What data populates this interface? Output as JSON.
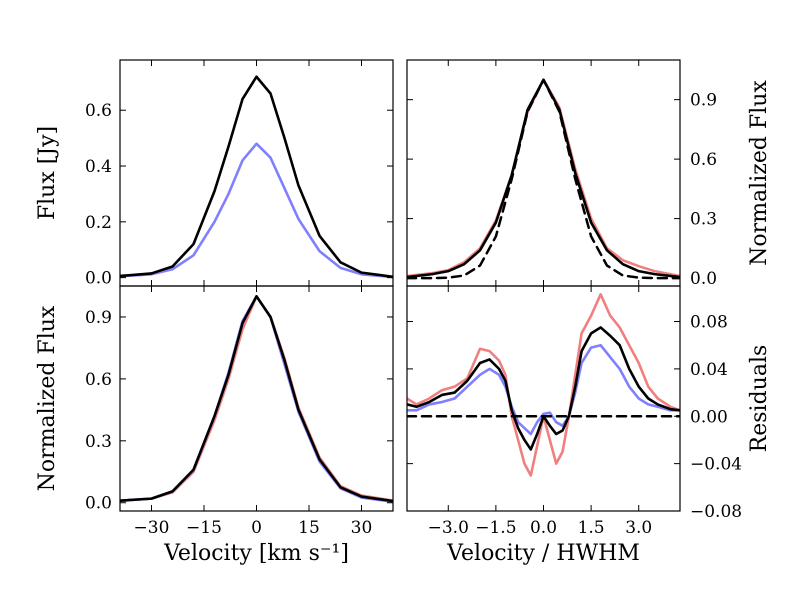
{
  "chart_data": [
    {
      "type": "line",
      "id": "top_left",
      "xlabel": "",
      "ylabel": "Flux [Jy]",
      "xlim": [
        -39,
        39
      ],
      "ylim": [
        -0.03,
        0.78
      ],
      "xticks": [
        -30,
        -15,
        0,
        15,
        30
      ],
      "xtick_labels": [],
      "yticks": [
        0.0,
        0.2,
        0.4,
        0.6
      ],
      "ytick_labels": [
        "0.0",
        "0.2",
        "0.4",
        "0.6"
      ],
      "ylabel_side": "left",
      "series": [
        {
          "name": "blue profile",
          "color": "#8080ff",
          "x": [
            -39,
            -30,
            -24,
            -18,
            -12,
            -8,
            -4,
            0,
            4,
            8,
            12,
            18,
            24,
            30,
            39
          ],
          "y": [
            0.005,
            0.012,
            0.03,
            0.08,
            0.2,
            0.3,
            0.42,
            0.48,
            0.43,
            0.32,
            0.21,
            0.095,
            0.035,
            0.012,
            0.002
          ]
        },
        {
          "name": "black profile",
          "color": "#000000",
          "x": [
            -39,
            -30,
            -24,
            -18,
            -12,
            -8,
            -4,
            0,
            4,
            8,
            12,
            18,
            24,
            30,
            39
          ],
          "y": [
            0.006,
            0.015,
            0.04,
            0.12,
            0.31,
            0.47,
            0.64,
            0.72,
            0.66,
            0.5,
            0.33,
            0.15,
            0.055,
            0.018,
            0.003
          ]
        }
      ]
    },
    {
      "type": "line",
      "id": "top_right",
      "xlabel": "",
      "ylabel": "Normalized Flux",
      "xlim": [
        -4.3,
        4.3
      ],
      "ylim": [
        -0.04,
        1.1
      ],
      "xticks": [
        -3.0,
        -1.5,
        0.0,
        1.5,
        3.0
      ],
      "xtick_labels": [],
      "yticks": [
        0.0,
        0.3,
        0.6,
        0.9
      ],
      "ytick_labels": [
        "0.0",
        "0.3",
        "0.6",
        "0.9"
      ],
      "ylabel_side": "right",
      "series": [
        {
          "name": "red profile",
          "color": "#f08080",
          "x": [
            -4.3,
            -3.5,
            -3.0,
            -2.5,
            -2.0,
            -1.5,
            -1.0,
            -0.5,
            0.0,
            0.5,
            1.0,
            1.5,
            2.0,
            2.5,
            3.0,
            3.5,
            4.3
          ],
          "y": [
            0.01,
            0.025,
            0.04,
            0.08,
            0.15,
            0.29,
            0.52,
            0.84,
            1.0,
            0.86,
            0.55,
            0.3,
            0.15,
            0.09,
            0.06,
            0.035,
            0.01
          ]
        },
        {
          "name": "black profile",
          "color": "#000000",
          "x": [
            -4.3,
            -3.5,
            -3.0,
            -2.5,
            -2.0,
            -1.5,
            -1.0,
            -0.5,
            0.0,
            0.5,
            1.0,
            1.5,
            2.0,
            2.5,
            3.0,
            3.5,
            4.3
          ],
          "y": [
            0.005,
            0.02,
            0.035,
            0.07,
            0.14,
            0.28,
            0.52,
            0.85,
            1.0,
            0.85,
            0.53,
            0.28,
            0.14,
            0.07,
            0.035,
            0.02,
            0.005
          ]
        },
        {
          "name": "gaussian",
          "color": "#000000",
          "dashed": true,
          "x": [
            -4.3,
            -3.5,
            -3.0,
            -2.5,
            -2.0,
            -1.5,
            -1.0,
            -0.5,
            0.0,
            0.5,
            1.0,
            1.5,
            2.0,
            2.5,
            3.0,
            3.5,
            4.3
          ],
          "y": [
            0.0,
            0.0,
            0.002,
            0.013,
            0.063,
            0.21,
            0.5,
            0.84,
            1.0,
            0.84,
            0.5,
            0.21,
            0.063,
            0.013,
            0.002,
            0.0,
            0.0
          ]
        }
      ]
    },
    {
      "type": "line",
      "id": "bottom_left",
      "xlabel": "Velocity [km s⁻¹]",
      "ylabel": "Normalized Flux",
      "xlim": [
        -39,
        39
      ],
      "ylim": [
        -0.04,
        1.05
      ],
      "xticks": [
        -30,
        -15,
        0,
        15,
        30
      ],
      "xtick_labels": [
        "−30",
        "−15",
        "0",
        "15",
        "30"
      ],
      "yticks": [
        0.0,
        0.3,
        0.6,
        0.9
      ],
      "ytick_labels": [
        "0.0",
        "0.3",
        "0.6",
        "0.9"
      ],
      "ylabel_side": "left",
      "series": [
        {
          "name": "red profile",
          "color": "#f08080",
          "x": [
            -39,
            -30,
            -24,
            -18,
            -12,
            -8,
            -4,
            0,
            4,
            8,
            12,
            18,
            24,
            30,
            39
          ],
          "y": [
            0.01,
            0.02,
            0.05,
            0.15,
            0.4,
            0.6,
            0.84,
            1.0,
            0.9,
            0.7,
            0.46,
            0.22,
            0.08,
            0.035,
            0.01
          ]
        },
        {
          "name": "blue profile",
          "color": "#8080ff",
          "x": [
            -39,
            -30,
            -24,
            -18,
            -12,
            -8,
            -4,
            0,
            4,
            8,
            12,
            18,
            24,
            30,
            39
          ],
          "y": [
            0.01,
            0.02,
            0.055,
            0.16,
            0.42,
            0.63,
            0.88,
            1.0,
            0.9,
            0.67,
            0.44,
            0.2,
            0.07,
            0.025,
            0.005
          ]
        },
        {
          "name": "black profile",
          "color": "#000000",
          "x": [
            -39,
            -30,
            -24,
            -18,
            -12,
            -8,
            -4,
            0,
            4,
            8,
            12,
            18,
            24,
            30,
            39
          ],
          "y": [
            0.01,
            0.02,
            0.055,
            0.16,
            0.42,
            0.62,
            0.87,
            1.0,
            0.9,
            0.69,
            0.45,
            0.21,
            0.075,
            0.03,
            0.008
          ]
        }
      ]
    },
    {
      "type": "line",
      "id": "bottom_right",
      "xlabel": "Velocity / HWHM",
      "ylabel": "Residuals",
      "xlim": [
        -4.3,
        4.3
      ],
      "ylim": [
        -0.08,
        0.11
      ],
      "xticks": [
        -3.0,
        -1.5,
        0.0,
        1.5,
        3.0
      ],
      "xtick_labels": [
        "−3.0",
        "−1.5",
        "0.0",
        "1.5",
        "3.0"
      ],
      "yticks": [
        -0.08,
        -0.04,
        0.0,
        0.04,
        0.08
      ],
      "ytick_labels": [
        "−0.08",
        "−0.04",
        "0.00",
        "0.04",
        "0.08"
      ],
      "ylabel_side": "right",
      "series": [
        {
          "name": "red residuals",
          "color": "#f08080",
          "x": [
            -4.3,
            -4.0,
            -3.6,
            -3.2,
            -2.8,
            -2.4,
            -2.0,
            -1.7,
            -1.4,
            -1.2,
            -1.0,
            -0.8,
            -0.6,
            -0.4,
            -0.2,
            0.0,
            0.2,
            0.4,
            0.6,
            0.8,
            1.0,
            1.2,
            1.5,
            1.8,
            2.1,
            2.4,
            2.7,
            3.0,
            3.3,
            3.6,
            4.0,
            4.3
          ],
          "y": [
            0.015,
            0.01,
            0.015,
            0.022,
            0.025,
            0.032,
            0.057,
            0.055,
            0.047,
            0.035,
            0.0,
            -0.02,
            -0.04,
            -0.05,
            -0.025,
            0.0,
            -0.02,
            -0.04,
            -0.03,
            0.0,
            0.035,
            0.07,
            0.085,
            0.103,
            0.085,
            0.075,
            0.06,
            0.045,
            0.025,
            0.015,
            0.008,
            0.005
          ]
        },
        {
          "name": "blue residuals",
          "color": "#8080ff",
          "x": [
            -4.3,
            -4.0,
            -3.6,
            -3.2,
            -2.8,
            -2.4,
            -2.0,
            -1.7,
            -1.4,
            -1.2,
            -1.0,
            -0.8,
            -0.6,
            -0.4,
            -0.2,
            0.0,
            0.2,
            0.4,
            0.6,
            0.8,
            1.0,
            1.2,
            1.5,
            1.8,
            2.1,
            2.4,
            2.7,
            3.0,
            3.3,
            3.6,
            4.0,
            4.3
          ],
          "y": [
            0.005,
            0.005,
            0.01,
            0.012,
            0.015,
            0.025,
            0.035,
            0.04,
            0.035,
            0.025,
            0.008,
            -0.005,
            -0.01,
            -0.015,
            -0.005,
            0.002,
            0.003,
            -0.005,
            -0.008,
            0.0,
            0.02,
            0.045,
            0.058,
            0.06,
            0.05,
            0.04,
            0.025,
            0.015,
            0.01,
            0.008,
            0.005,
            0.005
          ]
        },
        {
          "name": "black residuals",
          "color": "#000000",
          "x": [
            -4.3,
            -4.0,
            -3.6,
            -3.2,
            -2.8,
            -2.4,
            -2.0,
            -1.7,
            -1.4,
            -1.2,
            -1.0,
            -0.8,
            -0.6,
            -0.4,
            -0.2,
            0.0,
            0.2,
            0.4,
            0.6,
            0.8,
            1.0,
            1.2,
            1.5,
            1.8,
            2.1,
            2.4,
            2.7,
            3.0,
            3.3,
            3.6,
            4.0,
            4.3
          ],
          "y": [
            0.01,
            0.008,
            0.012,
            0.018,
            0.02,
            0.03,
            0.045,
            0.048,
            0.04,
            0.03,
            0.005,
            -0.01,
            -0.02,
            -0.028,
            -0.015,
            0.0,
            -0.008,
            -0.015,
            -0.012,
            0.0,
            0.025,
            0.055,
            0.07,
            0.075,
            0.068,
            0.06,
            0.04,
            0.025,
            0.015,
            0.01,
            0.006,
            0.005
          ]
        },
        {
          "name": "zero line",
          "color": "#000000",
          "dashed": true,
          "x": [
            -4.3,
            4.3
          ],
          "y": [
            0.0,
            0.0
          ]
        }
      ]
    }
  ]
}
